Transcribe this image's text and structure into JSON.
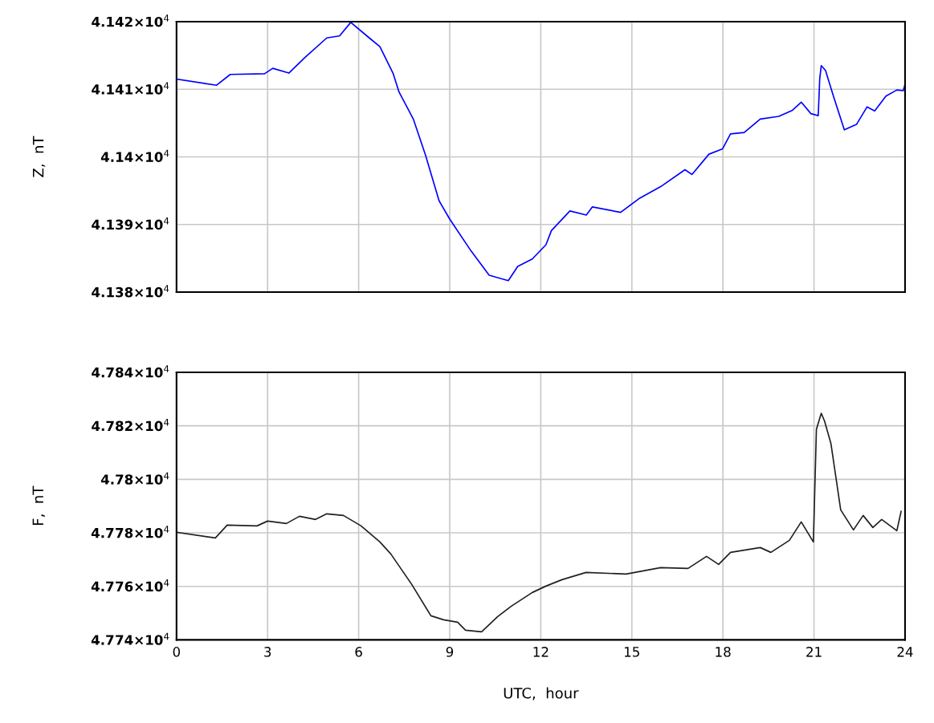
{
  "chart_data": [
    {
      "type": "line",
      "ylabel": "Z,  nT",
      "tick_labels": "y",
      "grid": true,
      "xlim": [
        0,
        24
      ],
      "xticks": [
        0,
        3,
        6,
        9,
        12,
        15,
        18,
        21,
        24
      ],
      "ylim": [
        41380,
        41420
      ],
      "yticks": [
        {
          "value": 41380,
          "label": "4.138×10$^{4}$"
        },
        {
          "value": 41390,
          "label": "4.139×10$^{4}$"
        },
        {
          "value": 41400,
          "label": "4.14×10$^{4}$"
        },
        {
          "value": 41410,
          "label": "4.141×10$^{4}$"
        },
        {
          "value": 41420,
          "label": "4.142×10$^{4}$"
        }
      ],
      "series": [
        {
          "color": "#0000ff",
          "x": [
            0,
            1.32,
            1.77,
            2.9,
            3.17,
            3.7,
            4.23,
            4.95,
            5.37,
            5.74,
            6.35,
            6.7,
            7.14,
            7.33,
            7.8,
            8.2,
            8.65,
            9.0,
            9.7,
            10.3,
            10.93,
            11.24,
            11.72,
            12.17,
            12.35,
            12.96,
            13.5,
            13.7,
            14.63,
            15.26,
            15.95,
            16.75,
            16.98,
            17.54,
            17.99,
            18.25,
            18.7,
            19.23,
            19.84,
            20.29,
            20.58,
            20.9,
            21.14,
            21.19,
            21.24,
            21.38,
            21.64,
            22.0,
            22.4,
            22.75,
            23.0,
            23.37,
            23.73,
            23.94,
            24
          ],
          "values": [
            41411.5,
            41410.6,
            41412.2,
            41412.3,
            41413.1,
            41412.4,
            41414.7,
            41417.6,
            41417.9,
            41419.9,
            41417.6,
            41416.3,
            41412.3,
            41409.6,
            41405.6,
            41400.3,
            41393.5,
            41390.8,
            41386.1,
            41382.5,
            41381.7,
            41383.8,
            41384.9,
            41387,
            41389.1,
            41392,
            41391.4,
            41392.6,
            41391.8,
            41393.9,
            41395.6,
            41398.1,
            41397.4,
            41400.4,
            41401.2,
            41403.4,
            41403.6,
            41405.6,
            41406,
            41406.9,
            41408.1,
            41406.4,
            41406.1,
            41411.6,
            41413.5,
            41412.8,
            41409,
            41404,
            41404.8,
            41407.4,
            41406.8,
            41409,
            41409.9,
            41409.8,
            41410.7
          ]
        }
      ]
    },
    {
      "type": "line",
      "ylabel": "F,  nT",
      "xlabel": "UTC,  hour",
      "grid": true,
      "xlim": [
        0,
        24
      ],
      "xticks": [
        0,
        3,
        6,
        9,
        12,
        15,
        18,
        21,
        24
      ],
      "ylim": [
        47740,
        47840
      ],
      "yticks": [
        {
          "value": 47740,
          "label": "4.774×10$^{4}$"
        },
        {
          "value": 47760,
          "label": "4.776×10$^{4}$"
        },
        {
          "value": 47780,
          "label": "4.778×10$^{4}$"
        },
        {
          "value": 47800,
          "label": "4.78×10$^{4}$"
        },
        {
          "value": 47820,
          "label": "4.782×10$^{4}$"
        },
        {
          "value": 47840,
          "label": "4.784×10$^{4}$"
        }
      ],
      "series": [
        {
          "color": "#202020",
          "x": [
            0,
            1.28,
            1.67,
            2.65,
            3.0,
            3.62,
            4.05,
            4.58,
            4.95,
            5.5,
            6.08,
            6.7,
            7.06,
            7.75,
            8.38,
            8.8,
            9.26,
            9.52,
            10.05,
            10.58,
            11.03,
            11.72,
            12.17,
            12.7,
            13.49,
            14.81,
            15.95,
            16.85,
            17.46,
            17.86,
            18.25,
            19.23,
            19.58,
            20.19,
            20.58,
            20.98,
            21.08,
            21.24,
            21.35,
            21.56,
            21.88,
            22.3,
            22.62,
            22.94,
            23.23,
            23.73,
            23.87
          ],
          "values": [
            47780.2,
            47778.1,
            47782.9,
            47782.6,
            47784.4,
            47783.5,
            47786.2,
            47785.0,
            47787.1,
            47786.5,
            47782.6,
            47776.6,
            47772.1,
            47760.7,
            47749.0,
            47747.5,
            47746.6,
            47743.6,
            47743.0,
            47748.7,
            47752.6,
            47757.7,
            47760.1,
            47762.5,
            47765.2,
            47764.6,
            47767.0,
            47766.7,
            47771.2,
            47768.2,
            47772.7,
            47774.5,
            47772.7,
            47777.2,
            47784.1,
            47776.6,
            47818.7,
            47824.7,
            47821.7,
            47813.3,
            47788.6,
            47781.1,
            47786.5,
            47782.0,
            47785.0,
            47780.8,
            47788.0
          ]
        }
      ]
    }
  ]
}
